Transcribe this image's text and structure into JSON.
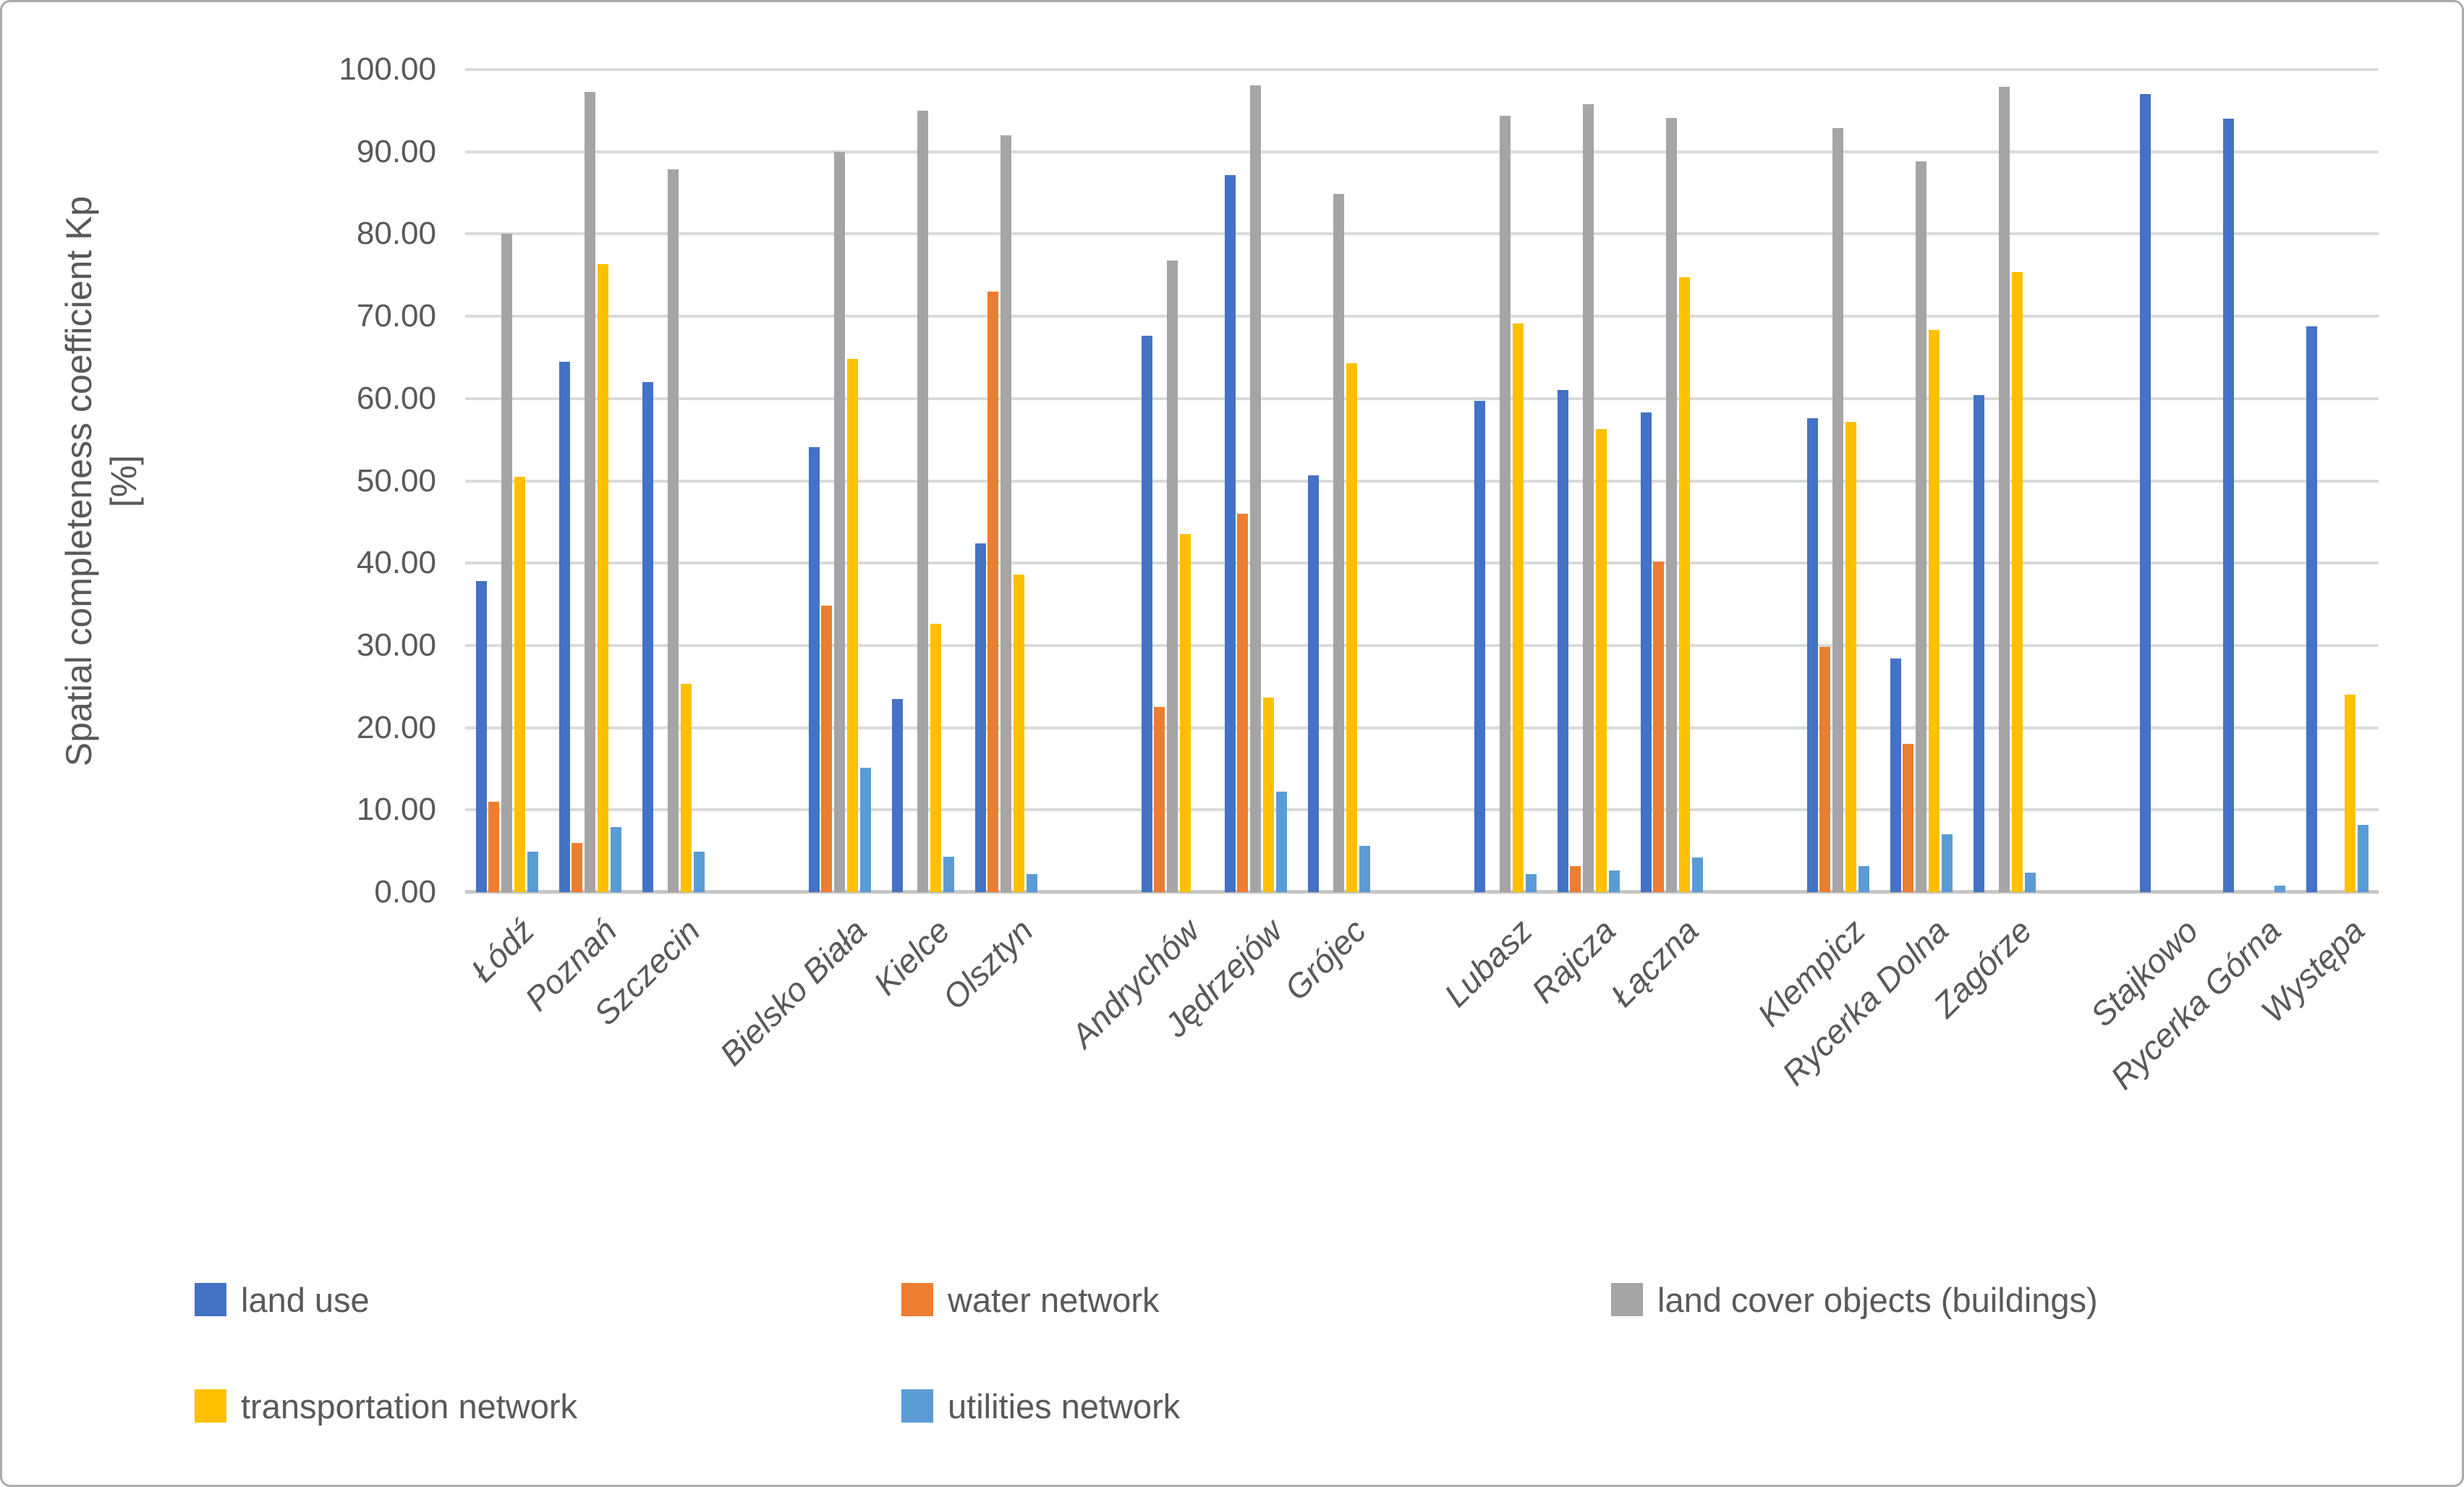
{
  "figure": {
    "y_axis_title_line1": "Spatial completeness coefficient Kp",
    "y_axis_title_line2": "[%]"
  },
  "chart_data": {
    "type": "bar",
    "title": "",
    "xlabel": "",
    "ylabel": "Spatial completeness coefficient Kp [%]",
    "ylim": [
      0,
      100
    ],
    "ytick_step": 10,
    "yticks": [
      "0.00",
      "10.00",
      "20.00",
      "30.00",
      "40.00",
      "50.00",
      "60.00",
      "70.00",
      "80.00",
      "90.00",
      "100.00"
    ],
    "grid": "horizontal",
    "legend_position": "bottom-left",
    "group_size": 3,
    "categories": [
      "Łódź",
      "Poznań",
      "Szczecin",
      "Bielsko Biała",
      "Kielce",
      "Olsztyn",
      "Andrychów",
      "Jędrzejów",
      "Grójec",
      "Lubasz",
      "Rajcza",
      "Łączna",
      "Klempicz",
      "Rycerka Dolna",
      "Zagórze",
      "Stajkowo",
      "Rycerka Górna",
      "Występa"
    ],
    "series": [
      {
        "name": "land use",
        "color": "#4472C4",
        "values": [
          37.8,
          64.5,
          62.0,
          54.1,
          23.5,
          42.4,
          67.6,
          87.2,
          50.7,
          59.7,
          61.0,
          58.3,
          57.6,
          28.4,
          60.4,
          97.0,
          94.0,
          68.8
        ]
      },
      {
        "name": "water network",
        "color": "#ED7D31",
        "values": [
          11.0,
          6.0,
          null,
          34.8,
          null,
          73.0,
          22.5,
          46.0,
          null,
          null,
          3.2,
          40.2,
          29.8,
          18.0,
          null,
          null,
          null,
          null
        ]
      },
      {
        "name": "land cover objects (buildings)",
        "color": "#A5A5A5",
        "values": [
          80.0,
          97.3,
          87.9,
          90.0,
          95.0,
          92.0,
          76.8,
          98.1,
          84.9,
          94.4,
          95.8,
          94.1,
          92.9,
          88.8,
          97.9,
          null,
          null,
          null
        ]
      },
      {
        "name": "transportation network",
        "color": "#FFC000",
        "values": [
          50.5,
          76.3,
          25.3,
          64.8,
          32.6,
          38.6,
          43.5,
          23.7,
          64.3,
          69.1,
          56.3,
          74.8,
          57.2,
          68.3,
          75.4,
          null,
          null,
          24.0
        ]
      },
      {
        "name": "utilities network",
        "color": "#5B9BD5",
        "values": [
          4.9,
          7.9,
          4.9,
          15.1,
          4.3,
          2.2,
          null,
          12.2,
          5.6,
          2.2,
          2.6,
          4.2,
          3.2,
          7.0,
          2.4,
          null,
          0.8,
          8.2
        ]
      }
    ],
    "legend_rows": [
      [
        0,
        1,
        2
      ],
      [
        3,
        4
      ]
    ]
  }
}
